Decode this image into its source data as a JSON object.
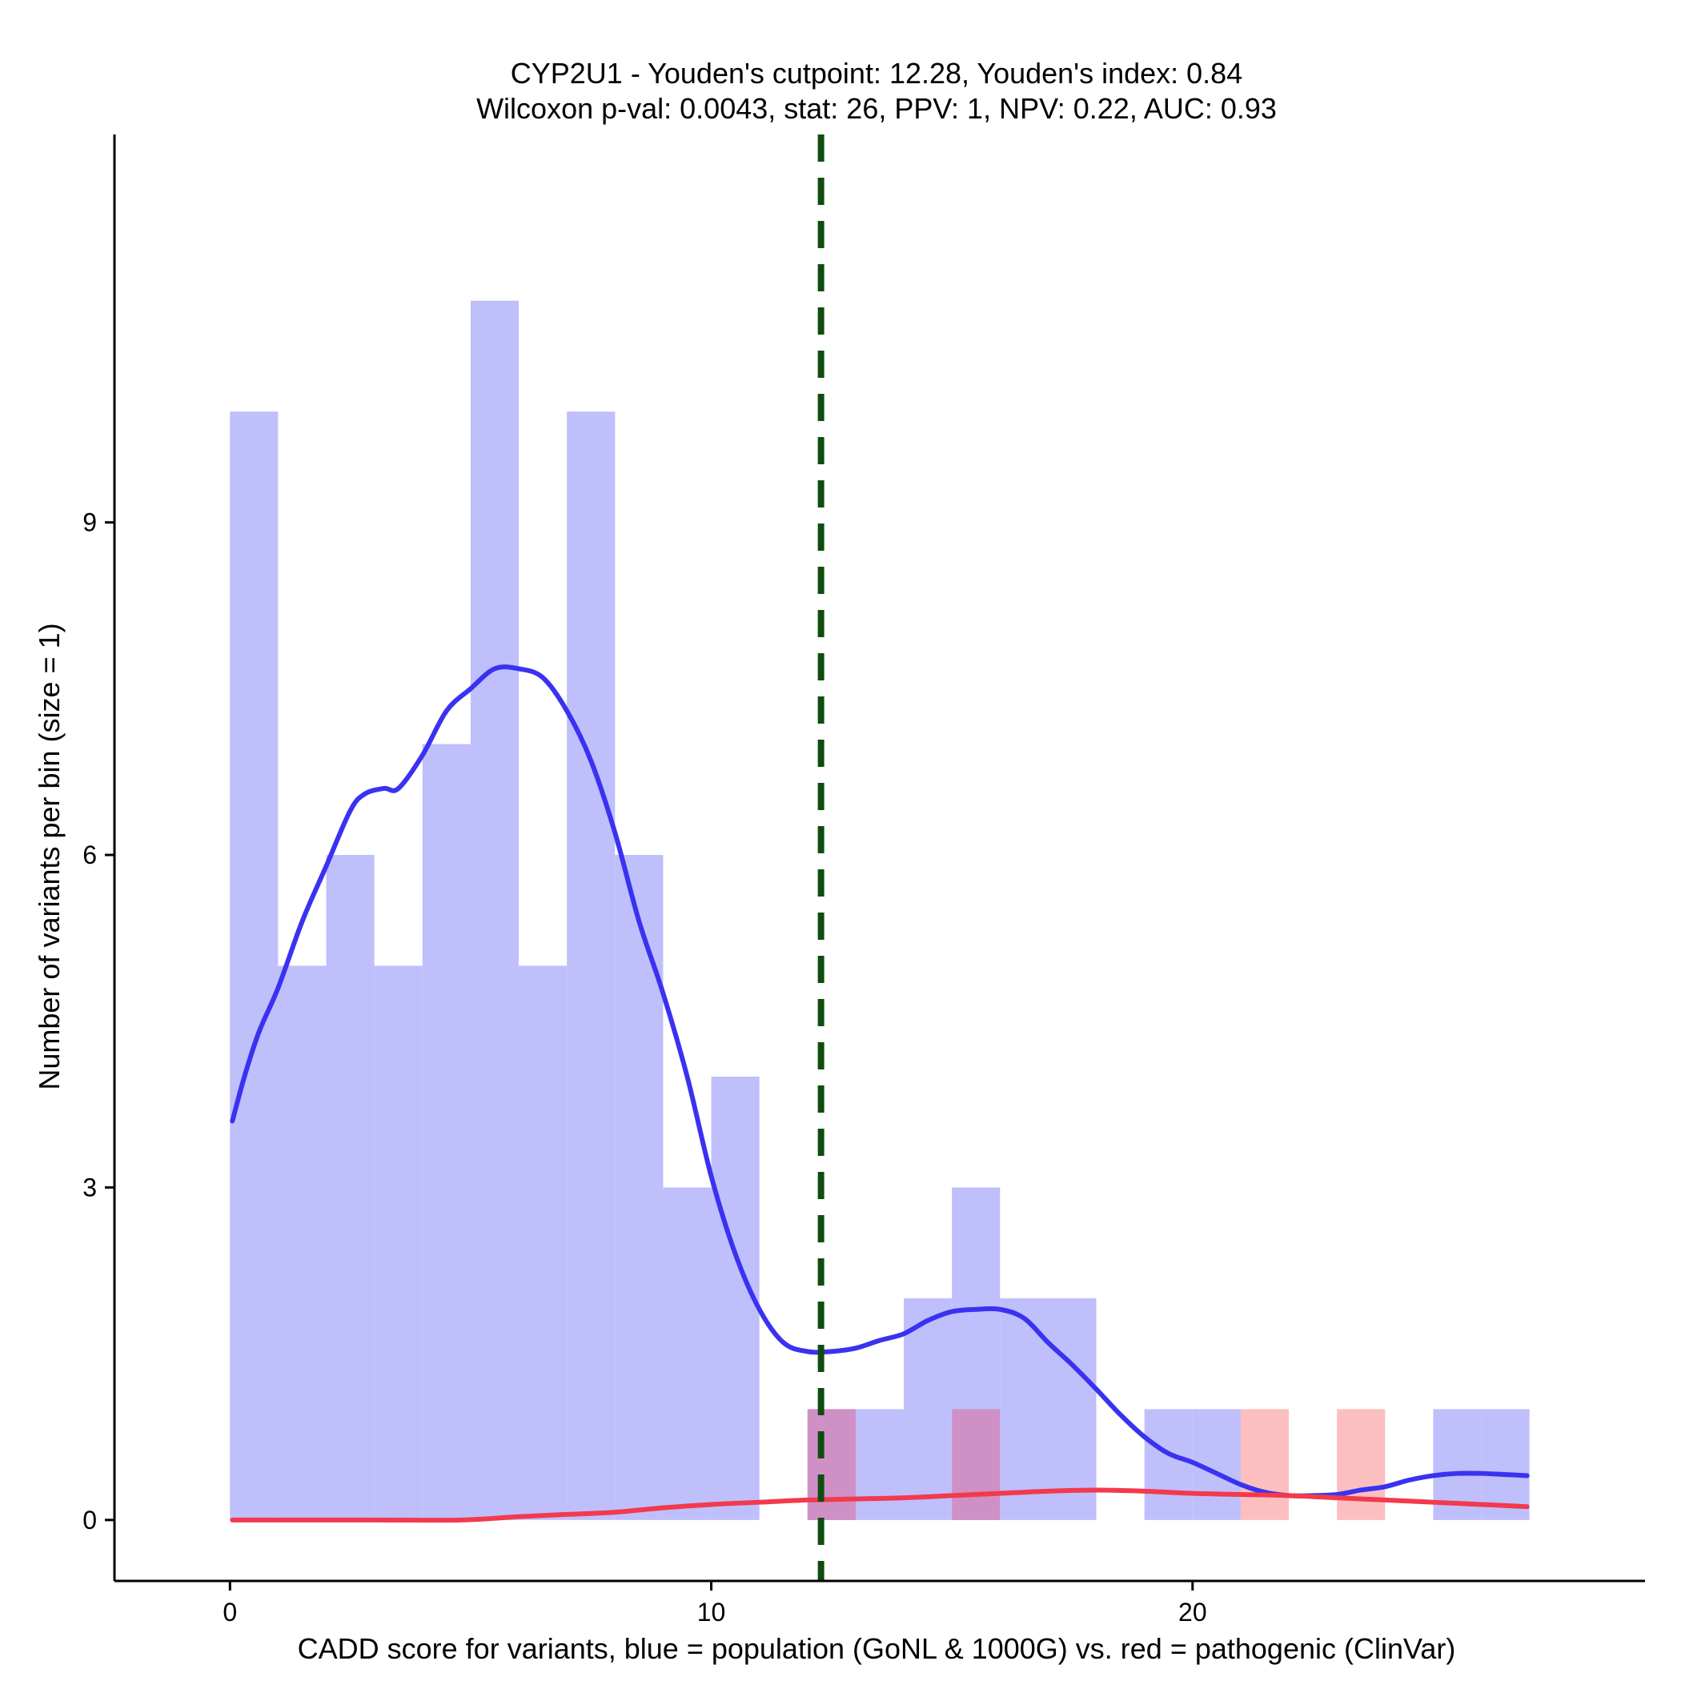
{
  "chart_data": {
    "type": "bar",
    "title_line1": "CYP2U1 - Youden's cutpoint: 12.28, Youden's index: 0.84",
    "title_line2": "Wilcoxon p-val: 0.0043, stat: 26, PPV: 1, NPV: 0.22, AUC: 0.93",
    "xlabel": "CADD score for variants, blue = population (GoNL & 1000G) vs. red = pathogenic (ClinVar)",
    "ylabel": "Number of variants per bin (size = 1)",
    "xlim": [
      -2.4,
      29.4
    ],
    "ylim": [
      -0.55,
      12.5
    ],
    "x_ticks": [
      0,
      10,
      20
    ],
    "y_ticks": [
      0,
      3,
      6,
      9
    ],
    "bin_width": 1,
    "cutpoint": 12.28,
    "colors": {
      "population_bar": "#bfbffc",
      "pathogenic_bar": "#fcbfbf",
      "overlap_bar": "#cf90c6",
      "population_line": "#3a32f0",
      "pathogenic_line": "#f23a4c",
      "cutpoint_line": "#0f4d0f"
    },
    "series": [
      {
        "name": "population",
        "bins": [
          {
            "start": 0,
            "count": 10
          },
          {
            "start": 1,
            "count": 5
          },
          {
            "start": 2,
            "count": 6
          },
          {
            "start": 3,
            "count": 5
          },
          {
            "start": 4,
            "count": 7
          },
          {
            "start": 5,
            "count": 11
          },
          {
            "start": 6,
            "count": 5
          },
          {
            "start": 7,
            "count": 10
          },
          {
            "start": 8,
            "count": 6
          },
          {
            "start": 9,
            "count": 3
          },
          {
            "start": 10,
            "count": 4
          },
          {
            "start": 12,
            "count": 1
          },
          {
            "start": 13,
            "count": 1
          },
          {
            "start": 14,
            "count": 2
          },
          {
            "start": 15,
            "count": 3
          },
          {
            "start": 16,
            "count": 2
          },
          {
            "start": 17,
            "count": 2
          },
          {
            "start": 19,
            "count": 1
          },
          {
            "start": 20,
            "count": 1
          },
          {
            "start": 25,
            "count": 1
          },
          {
            "start": 26,
            "count": 1
          }
        ]
      },
      {
        "name": "pathogenic",
        "bins": [
          {
            "start": 12,
            "count": 1
          },
          {
            "start": 15,
            "count": 1
          },
          {
            "start": 21,
            "count": 1
          },
          {
            "start": 23,
            "count": 1
          }
        ]
      }
    ],
    "density_population": [
      [
        0.05,
        3.6
      ],
      [
        0.3,
        4.0
      ],
      [
        0.6,
        4.4
      ],
      [
        1.0,
        4.8
      ],
      [
        1.5,
        5.4
      ],
      [
        2.0,
        5.9
      ],
      [
        2.5,
        6.4
      ],
      [
        2.8,
        6.55
      ],
      [
        3.2,
        6.6
      ],
      [
        3.5,
        6.6
      ],
      [
        4.0,
        6.9
      ],
      [
        4.5,
        7.3
      ],
      [
        5.0,
        7.5
      ],
      [
        5.5,
        7.68
      ],
      [
        6.0,
        7.68
      ],
      [
        6.5,
        7.6
      ],
      [
        7.0,
        7.3
      ],
      [
        7.5,
        6.85
      ],
      [
        8.0,
        6.2
      ],
      [
        8.5,
        5.4
      ],
      [
        9.0,
        4.75
      ],
      [
        9.5,
        4.0
      ],
      [
        10.0,
        3.1
      ],
      [
        10.5,
        2.4
      ],
      [
        11.0,
        1.9
      ],
      [
        11.5,
        1.6
      ],
      [
        12.0,
        1.52
      ],
      [
        12.5,
        1.52
      ],
      [
        13.0,
        1.55
      ],
      [
        13.5,
        1.62
      ],
      [
        14.0,
        1.68
      ],
      [
        14.5,
        1.8
      ],
      [
        15.0,
        1.88
      ],
      [
        15.5,
        1.9
      ],
      [
        16.0,
        1.9
      ],
      [
        16.5,
        1.82
      ],
      [
        17.0,
        1.6
      ],
      [
        17.5,
        1.4
      ],
      [
        18.0,
        1.18
      ],
      [
        18.5,
        0.95
      ],
      [
        19.0,
        0.75
      ],
      [
        19.5,
        0.6
      ],
      [
        20.0,
        0.52
      ],
      [
        20.5,
        0.42
      ],
      [
        21.0,
        0.32
      ],
      [
        21.5,
        0.25
      ],
      [
        22.0,
        0.22
      ],
      [
        22.5,
        0.22
      ],
      [
        23.0,
        0.23
      ],
      [
        23.5,
        0.27
      ],
      [
        24.0,
        0.3
      ],
      [
        24.5,
        0.36
      ],
      [
        25.0,
        0.4
      ],
      [
        25.5,
        0.42
      ],
      [
        26.0,
        0.42
      ],
      [
        26.5,
        0.41
      ],
      [
        26.95,
        0.4
      ]
    ],
    "density_pathogenic": [
      [
        0.05,
        0.0
      ],
      [
        3.0,
        0.0
      ],
      [
        4.8,
        0.0
      ],
      [
        6.0,
        0.03
      ],
      [
        7.0,
        0.05
      ],
      [
        8.0,
        0.07
      ],
      [
        9.0,
        0.11
      ],
      [
        10.0,
        0.14
      ],
      [
        11.0,
        0.16
      ],
      [
        12.0,
        0.18
      ],
      [
        13.0,
        0.19
      ],
      [
        14.0,
        0.2
      ],
      [
        15.0,
        0.22
      ],
      [
        16.0,
        0.24
      ],
      [
        17.0,
        0.26
      ],
      [
        18.0,
        0.27
      ],
      [
        19.0,
        0.26
      ],
      [
        20.0,
        0.24
      ],
      [
        21.0,
        0.23
      ],
      [
        22.0,
        0.22
      ],
      [
        23.0,
        0.2
      ],
      [
        24.0,
        0.18
      ],
      [
        25.0,
        0.16
      ],
      [
        26.0,
        0.14
      ],
      [
        26.95,
        0.12
      ]
    ]
  }
}
